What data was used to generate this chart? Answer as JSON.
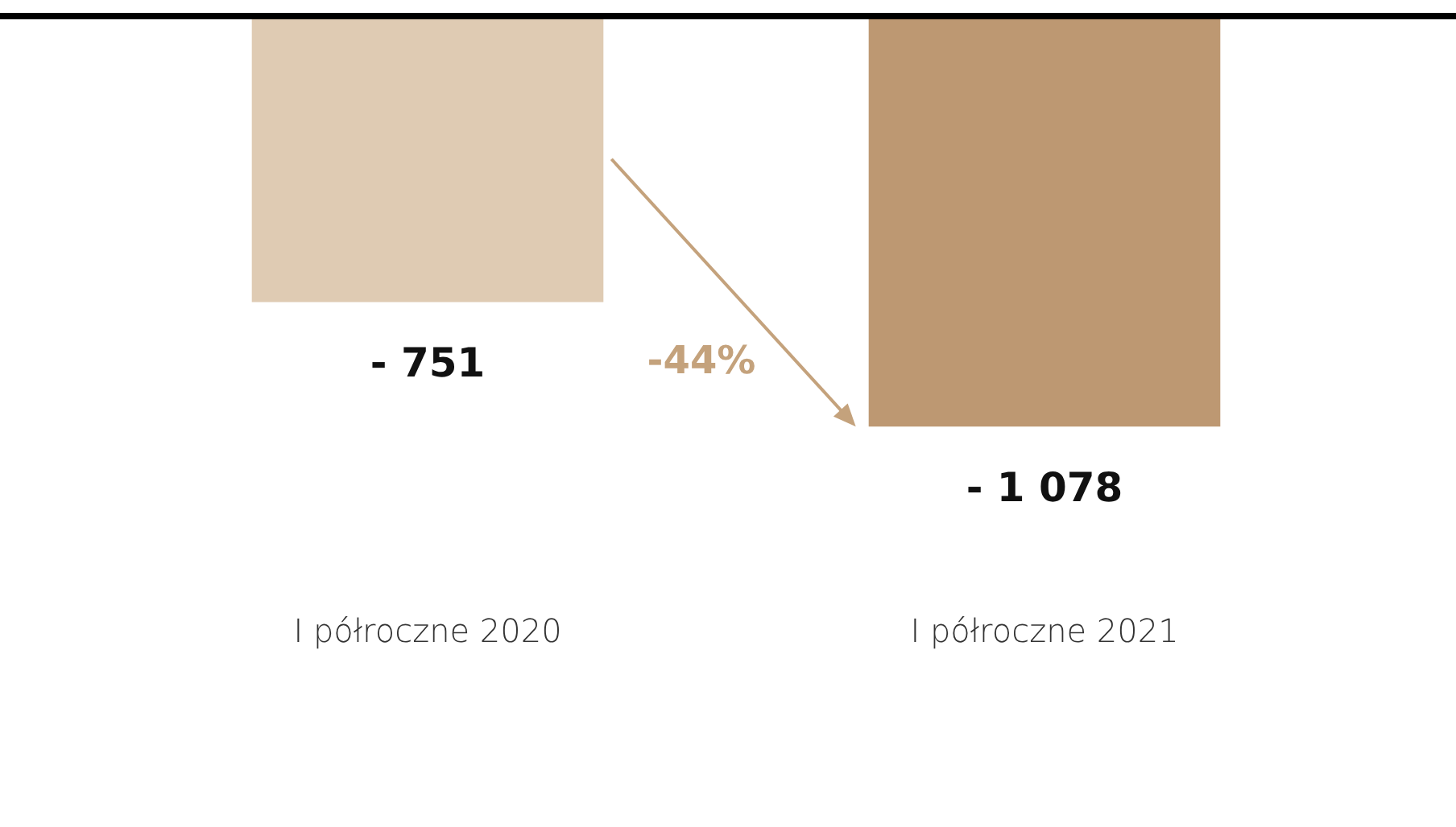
{
  "chart_data": {
    "type": "bar",
    "categories": [
      "I półroczne 2020",
      "I półroczne 2021"
    ],
    "values": [
      -751,
      -1078
    ],
    "colors": [
      "#dfcbb3",
      "#bd9872"
    ],
    "value_labels": [
      "- 751",
      "- 1 078"
    ],
    "annotations": [
      "-44%"
    ],
    "grid": false,
    "legend": false
  }
}
